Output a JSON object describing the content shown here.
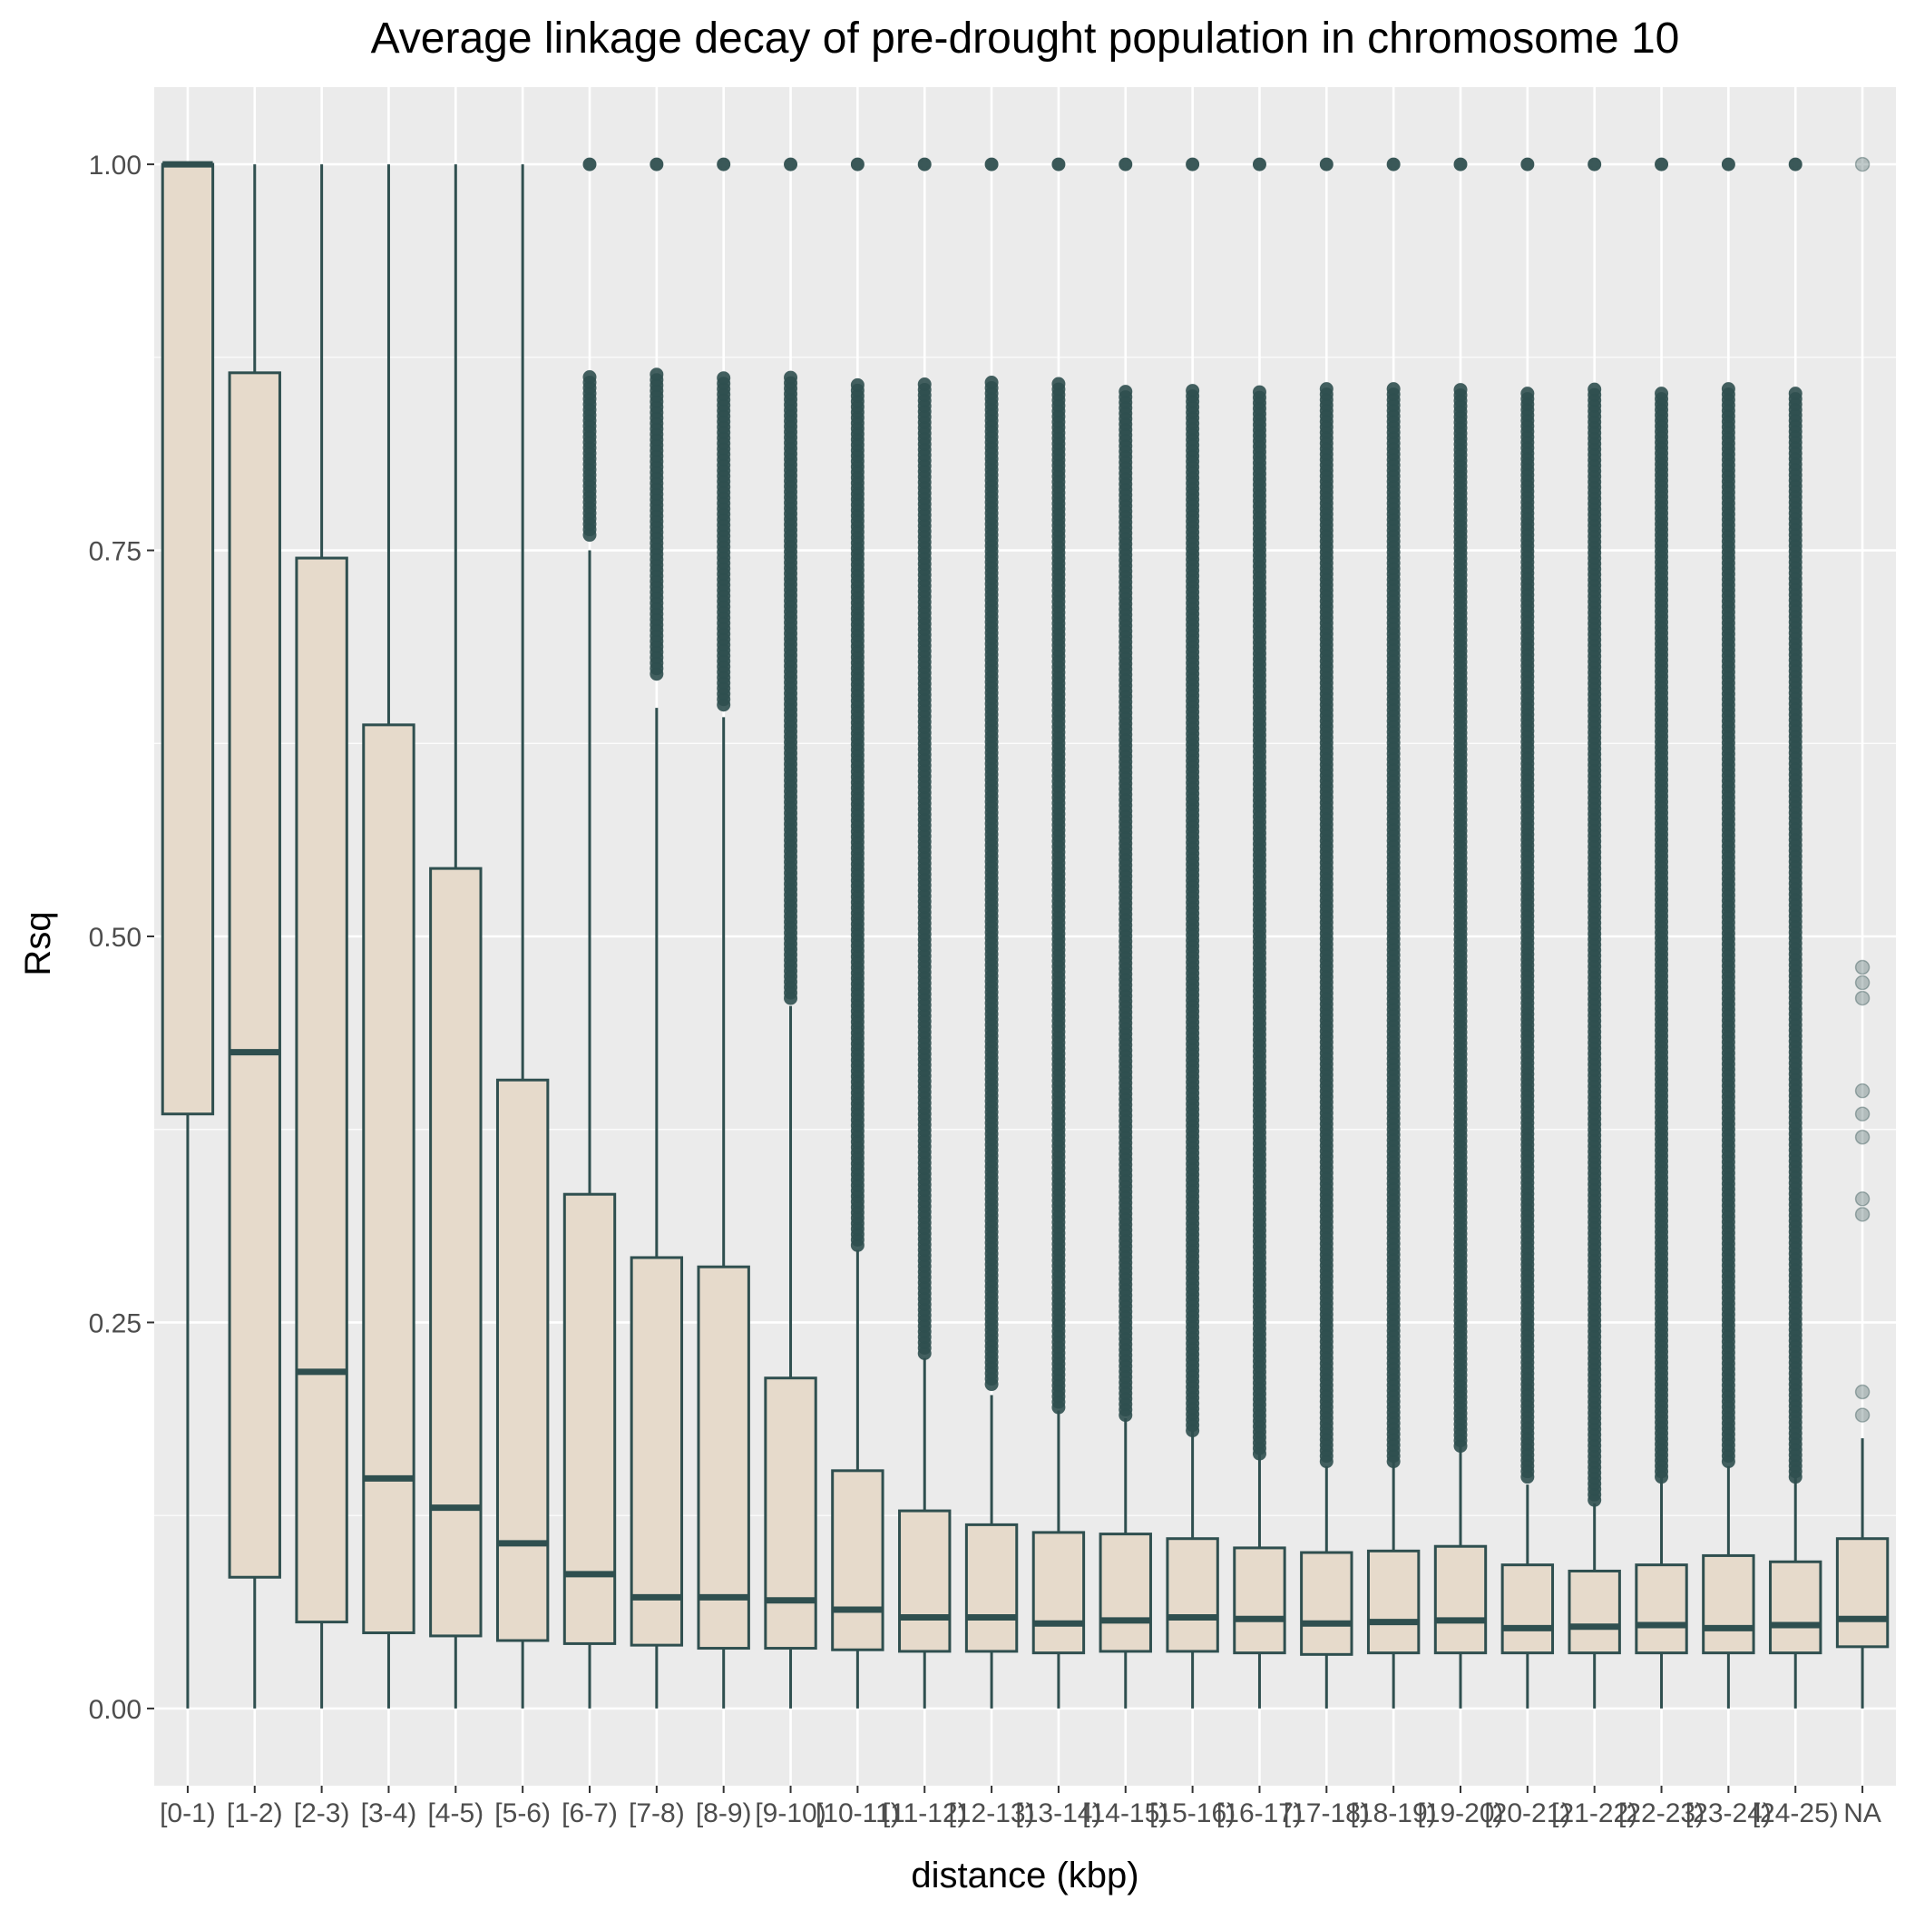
{
  "chart_data": {
    "type": "boxplot",
    "title": "Average linkage decay of pre-drought population in chromosome  10",
    "xlabel": "distance (kbp)",
    "ylabel": "Rsq",
    "ylim": [
      -0.05,
      1.05
    ],
    "yticks": [
      "0.00",
      "0.25",
      "0.50",
      "0.75",
      "1.00"
    ],
    "ytick_values": [
      0,
      0.25,
      0.5,
      0.75,
      1.0
    ],
    "grid": true,
    "colors": {
      "panel_bg": "#ebebeb",
      "grid": "#ffffff",
      "box_fill": "#e6dacb",
      "box_stroke": "#2f4f4f",
      "outlier": "#2f4f4f"
    },
    "categories": [
      "[0-1)",
      "[1-2)",
      "[2-3)",
      "[3-4)",
      "[4-5)",
      "[5-6)",
      "[6-7)",
      "[7-8)",
      "[8-9)",
      "[9-10)",
      "[10-11)",
      "[11-12)",
      "[12-13)",
      "[13-14)",
      "[14-15)",
      "[15-16)",
      "[16-17)",
      "[17-18)",
      "[18-19)",
      "[19-20)",
      "[20-21)",
      "[21-22)",
      "[22-23)",
      "[23-24)",
      "[24-25)",
      "NA"
    ],
    "boxes": [
      {
        "lower": 0.0,
        "q1": 0.385,
        "median": 1.0,
        "q3": 1.0,
        "upper": 1.0
      },
      {
        "lower": 0.0,
        "q1": 0.085,
        "median": 0.425,
        "q3": 0.865,
        "upper": 1.0
      },
      {
        "lower": 0.0,
        "q1": 0.056,
        "median": 0.218,
        "q3": 0.745,
        "upper": 1.0
      },
      {
        "lower": 0.0,
        "q1": 0.049,
        "median": 0.149,
        "q3": 0.637,
        "upper": 1.0
      },
      {
        "lower": 0.0,
        "q1": 0.047,
        "median": 0.13,
        "q3": 0.544,
        "upper": 1.0
      },
      {
        "lower": 0.0,
        "q1": 0.044,
        "median": 0.107,
        "q3": 0.407,
        "upper": 1.0
      },
      {
        "lower": 0.0,
        "q1": 0.042,
        "median": 0.087,
        "q3": 0.333,
        "upper": 0.75
      },
      {
        "lower": 0.0,
        "q1": 0.041,
        "median": 0.072,
        "q3": 0.292,
        "upper": 0.648
      },
      {
        "lower": 0.0,
        "q1": 0.039,
        "median": 0.072,
        "q3": 0.286,
        "upper": 0.642
      },
      {
        "lower": 0.0,
        "q1": 0.039,
        "median": 0.07,
        "q3": 0.214,
        "upper": 0.455
      },
      {
        "lower": 0.0,
        "q1": 0.038,
        "median": 0.064,
        "q3": 0.154,
        "upper": 0.297
      },
      {
        "lower": 0.0,
        "q1": 0.037,
        "median": 0.059,
        "q3": 0.128,
        "upper": 0.227
      },
      {
        "lower": 0.0,
        "q1": 0.037,
        "median": 0.059,
        "q3": 0.119,
        "upper": 0.203
      },
      {
        "lower": 0.0,
        "q1": 0.036,
        "median": 0.055,
        "q3": 0.114,
        "upper": 0.193
      },
      {
        "lower": 0.0,
        "q1": 0.037,
        "median": 0.057,
        "q3": 0.113,
        "upper": 0.188
      },
      {
        "lower": 0.0,
        "q1": 0.037,
        "median": 0.059,
        "q3": 0.11,
        "upper": 0.18
      },
      {
        "lower": 0.0,
        "q1": 0.036,
        "median": 0.058,
        "q3": 0.104,
        "upper": 0.165
      },
      {
        "lower": 0.0,
        "q1": 0.035,
        "median": 0.055,
        "q3": 0.101,
        "upper": 0.157
      },
      {
        "lower": 0.0,
        "q1": 0.036,
        "median": 0.056,
        "q3": 0.102,
        "upper": 0.16
      },
      {
        "lower": 0.0,
        "q1": 0.036,
        "median": 0.057,
        "q3": 0.105,
        "upper": 0.17
      },
      {
        "lower": 0.0,
        "q1": 0.036,
        "median": 0.052,
        "q3": 0.093,
        "upper": 0.145
      },
      {
        "lower": 0.0,
        "q1": 0.036,
        "median": 0.053,
        "q3": 0.089,
        "upper": 0.133
      },
      {
        "lower": 0.0,
        "q1": 0.036,
        "median": 0.054,
        "q3": 0.093,
        "upper": 0.15
      },
      {
        "lower": 0.0,
        "q1": 0.036,
        "median": 0.052,
        "q3": 0.099,
        "upper": 0.157
      },
      {
        "lower": 0.0,
        "q1": 0.036,
        "median": 0.054,
        "q3": 0.095,
        "upper": 0.15
      },
      {
        "lower": 0.0,
        "q1": 0.04,
        "median": 0.058,
        "q3": 0.11,
        "upper": 0.175
      }
    ],
    "outlier_ranges": [
      [],
      [],
      [],
      [],
      [],
      [],
      [
        [
          0.76,
          0.865
        ],
        [
          1.0,
          1.0
        ]
      ],
      [
        [
          0.67,
          0.865
        ],
        [
          1.0,
          1.0
        ]
      ],
      [
        [
          0.65,
          0.865
        ],
        [
          1.0,
          1.0
        ]
      ],
      [
        [
          0.46,
          0.865
        ],
        [
          1.0,
          1.0
        ]
      ],
      [
        [
          0.3,
          0.86
        ],
        [
          1.0,
          1.0
        ]
      ],
      [
        [
          0.23,
          0.86
        ],
        [
          1.0,
          1.0
        ]
      ],
      [
        [
          0.21,
          0.86
        ],
        [
          1.0,
          1.0
        ]
      ],
      [
        [
          0.195,
          0.86
        ],
        [
          1.0,
          1.0
        ]
      ],
      [
        [
          0.19,
          0.855
        ],
        [
          1.0,
          1.0
        ]
      ],
      [
        [
          0.18,
          0.855
        ],
        [
          1.0,
          1.0
        ]
      ],
      [
        [
          0.165,
          0.855
        ],
        [
          1.0,
          1.0
        ]
      ],
      [
        [
          0.16,
          0.855
        ],
        [
          1.0,
          1.0
        ]
      ],
      [
        [
          0.16,
          0.855
        ],
        [
          1.0,
          1.0
        ]
      ],
      [
        [
          0.17,
          0.855
        ],
        [
          1.0,
          1.0
        ]
      ],
      [
        [
          0.15,
          0.855
        ],
        [
          1.0,
          1.0
        ]
      ],
      [
        [
          0.135,
          0.855
        ],
        [
          1.0,
          1.0
        ]
      ],
      [
        [
          0.15,
          0.855
        ],
        [
          1.0,
          1.0
        ]
      ],
      [
        [
          0.16,
          0.855
        ],
        [
          1.0,
          1.0
        ]
      ],
      [
        [
          0.15,
          0.855
        ],
        [
          1.0,
          1.0
        ]
      ],
      []
    ],
    "outliers_sparse": {
      "25": [
        1.0,
        0.48,
        0.47,
        0.46,
        0.4,
        0.385,
        0.37,
        0.33,
        0.32,
        0.205,
        0.19
      ]
    }
  }
}
